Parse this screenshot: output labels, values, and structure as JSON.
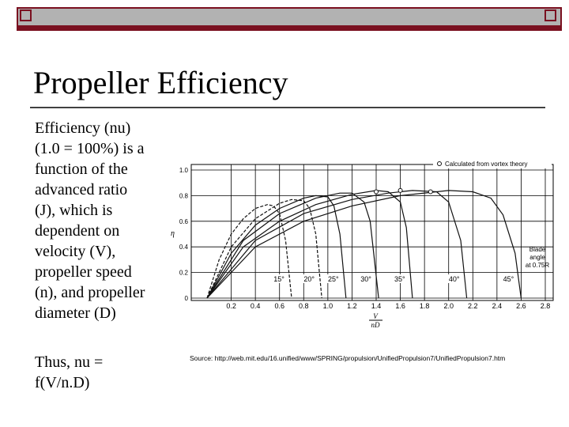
{
  "slide": {
    "title": "Propeller Efficiency",
    "body_lines": [
      "Efficiency (nu)",
      "(1.0 = 100%) is a",
      "function of the",
      "advanced ratio",
      "(J), which is",
      "dependent on",
      "velocity (V),",
      "propeller speed",
      "(n), and propeller",
      "diameter (D)"
    ],
    "note_lines": [
      "Thus, nu =",
      "f(V/n.D)"
    ],
    "source": "Source: http://web.mit.edu/16.unified/www/SPRING/propulsion/UnifiedPropulsion7/UnifiedPropulsion7.htm"
  },
  "chart_data": {
    "type": "line",
    "y_label": "η",
    "x_label_numerator": "V",
    "x_label_denominator": "nD",
    "annotation_lines": [
      "Blade",
      "angle",
      "at 0.75R"
    ],
    "xlim": [
      0,
      2.8
    ],
    "ylim": [
      0,
      1.0
    ],
    "xticks": [
      0.2,
      0.4,
      0.6,
      0.8,
      {
        "value": 1,
        "label": "1.0"
      },
      1.2,
      1.4,
      1.6,
      1.8,
      {
        "value": 2,
        "label": "2.0"
      },
      2.2,
      2.4,
      2.6,
      2.8
    ],
    "yticks": [
      0,
      0.2,
      0.4,
      0.6,
      0.8,
      {
        "value": 1,
        "label": "1.0"
      }
    ],
    "grid": true,
    "series": [
      {
        "name": "15°",
        "color": "#111111",
        "x": [
          0,
          0.1,
          0.2,
          0.3,
          0.4,
          0.5,
          0.55,
          0.6,
          0.65,
          0.7
        ],
        "values": [
          0,
          0.3,
          0.5,
          0.62,
          0.7,
          0.73,
          0.72,
          0.66,
          0.45,
          0
        ]
      },
      {
        "name": "20°",
        "color": "#111111",
        "x": [
          0,
          0.2,
          0.4,
          0.6,
          0.7,
          0.8,
          0.85,
          0.9,
          0.95
        ],
        "values": [
          0,
          0.4,
          0.62,
          0.74,
          0.77,
          0.76,
          0.7,
          0.5,
          0
        ]
      },
      {
        "name": "25°",
        "color": "#111111",
        "x": [
          0,
          0.2,
          0.4,
          0.6,
          0.8,
          0.9,
          1.0,
          1.05,
          1.1,
          1.15
        ],
        "values": [
          0,
          0.35,
          0.57,
          0.7,
          0.78,
          0.8,
          0.79,
          0.72,
          0.5,
          0
        ]
      },
      {
        "name": "30°",
        "color": "#111111",
        "x": [
          0,
          0.3,
          0.6,
          0.9,
          1.1,
          1.2,
          1.3,
          1.35,
          1.42
        ],
        "values": [
          0,
          0.45,
          0.66,
          0.78,
          0.82,
          0.82,
          0.75,
          0.6,
          0
        ]
      },
      {
        "name": "35°",
        "color": "#111111",
        "x": [
          0,
          0.3,
          0.6,
          0.9,
          1.2,
          1.4,
          1.5,
          1.6,
          1.65,
          1.7
        ],
        "values": [
          0,
          0.4,
          0.6,
          0.73,
          0.81,
          0.84,
          0.83,
          0.75,
          0.55,
          0
        ]
      },
      {
        "name": "40°",
        "color": "#111111",
        "x": [
          0,
          0.4,
          0.8,
          1.2,
          1.5,
          1.7,
          1.9,
          2.0,
          2.1,
          2.15
        ],
        "values": [
          0,
          0.45,
          0.66,
          0.77,
          0.82,
          0.84,
          0.83,
          0.75,
          0.45,
          0
        ]
      },
      {
        "name": "45°",
        "color": "#111111",
        "x": [
          0,
          0.4,
          0.8,
          1.2,
          1.6,
          2.0,
          2.2,
          2.35,
          2.45,
          2.55,
          2.6
        ],
        "values": [
          0,
          0.4,
          0.6,
          0.72,
          0.8,
          0.84,
          0.83,
          0.78,
          0.65,
          0.35,
          0
        ]
      }
    ],
    "points": {
      "name": "Calculated from vortex theory",
      "color": "#111111",
      "x": [
        1.4,
        1.6,
        1.85
      ],
      "values": [
        0.83,
        0.84,
        0.83
      ]
    }
  }
}
